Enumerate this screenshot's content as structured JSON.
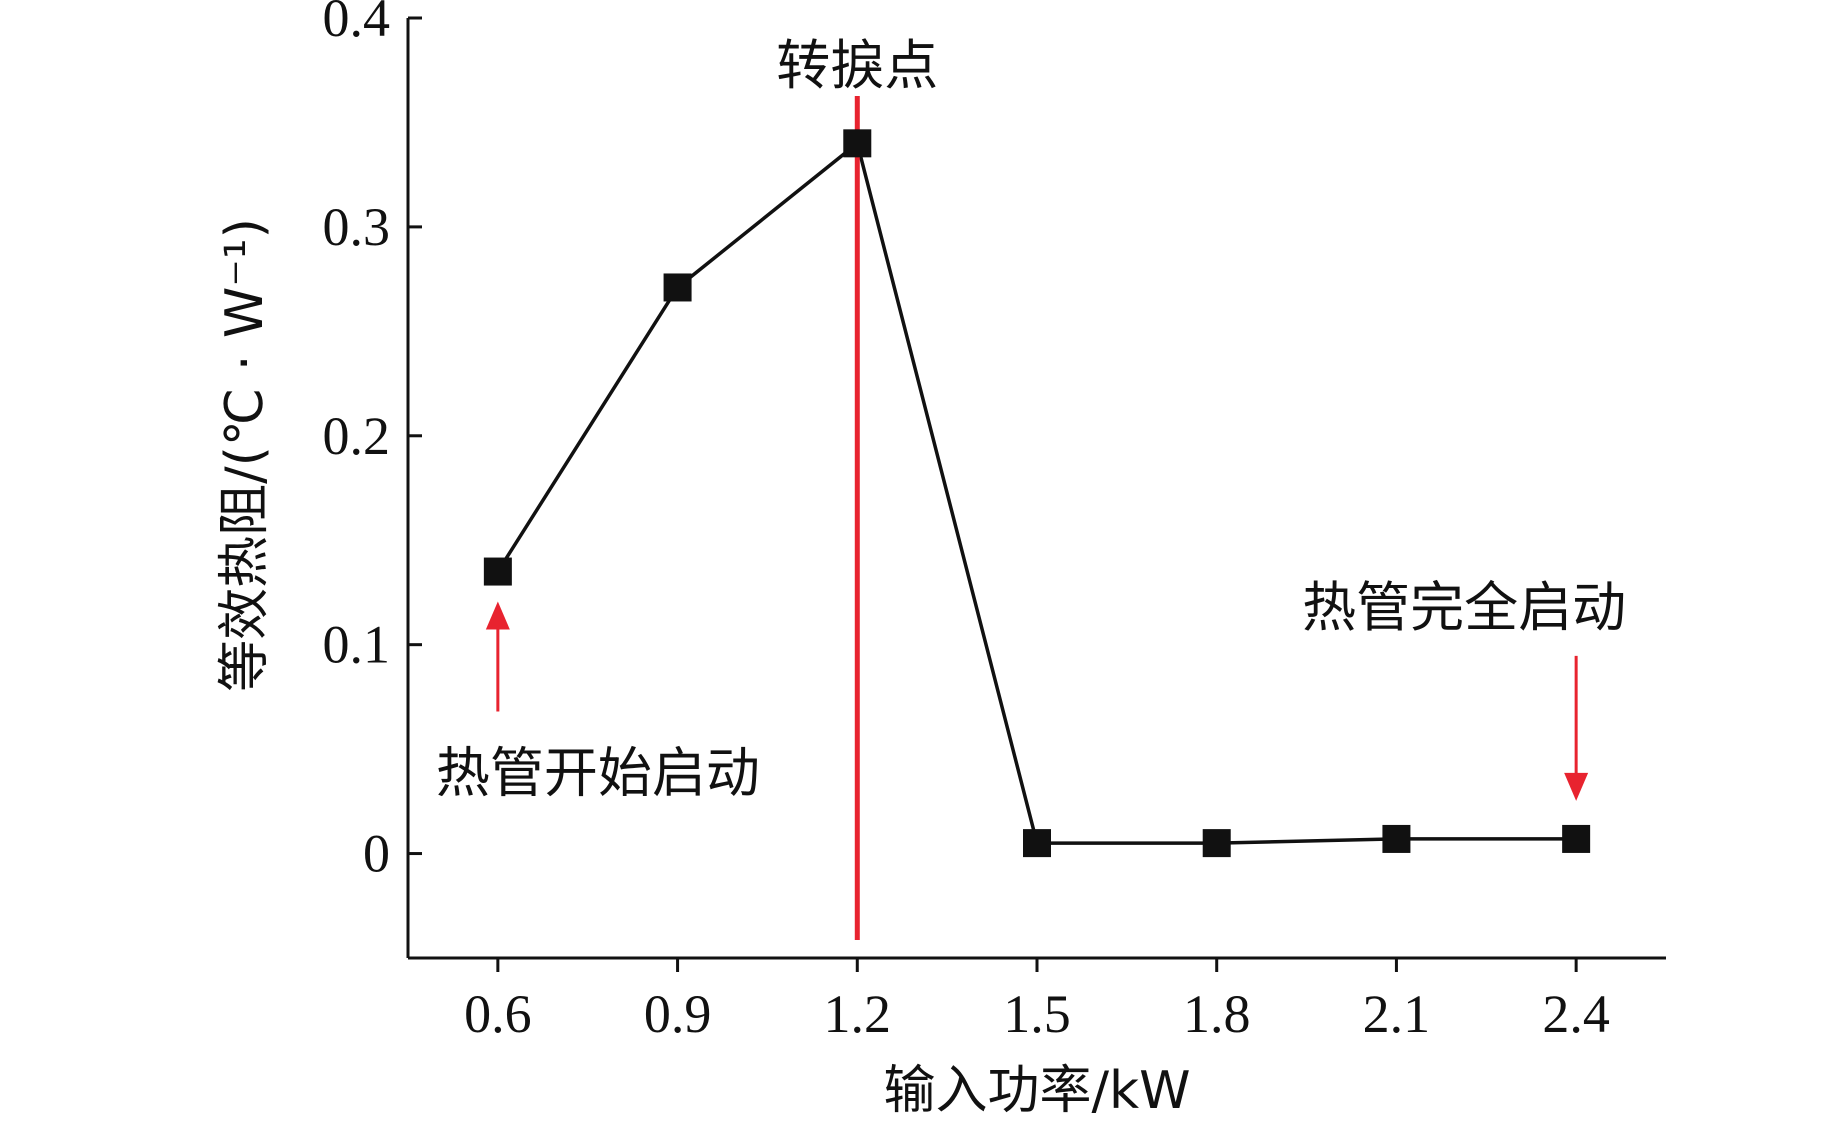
{
  "chart_data": {
    "type": "line",
    "xlabel": "输入功率/kW",
    "ylabel": "等效热阻/(℃ · W⁻¹)",
    "x": [
      0.6,
      0.9,
      1.2,
      1.5,
      1.8,
      2.1,
      2.4
    ],
    "x_ticks": [
      "0.6",
      "0.9",
      "1.2",
      "1.5",
      "1.8",
      "2.1",
      "2.4"
    ],
    "y_ticks": [
      "0",
      "0.1",
      "0.2",
      "0.3",
      "0.4"
    ],
    "xlim": [
      0.45,
      2.55
    ],
    "ylim": [
      -0.05,
      0.4
    ],
    "grid": false,
    "series": [
      {
        "values": [
          0.135,
          0.271,
          0.34,
          0.005,
          0.005,
          0.007,
          0.007
        ],
        "color": "#111111",
        "marker": "square"
      }
    ],
    "reference_line": {
      "x": 1.2,
      "color": "#e8232f",
      "label": "转捩点"
    },
    "annotations": [
      {
        "text": "热管开始启动",
        "x": 0.6,
        "y": 0.135,
        "arrow": "up",
        "color": "#e8232f"
      },
      {
        "text": "热管完全启动",
        "x": 2.4,
        "y": 0.007,
        "arrow": "down",
        "color": "#e8232f"
      }
    ]
  }
}
